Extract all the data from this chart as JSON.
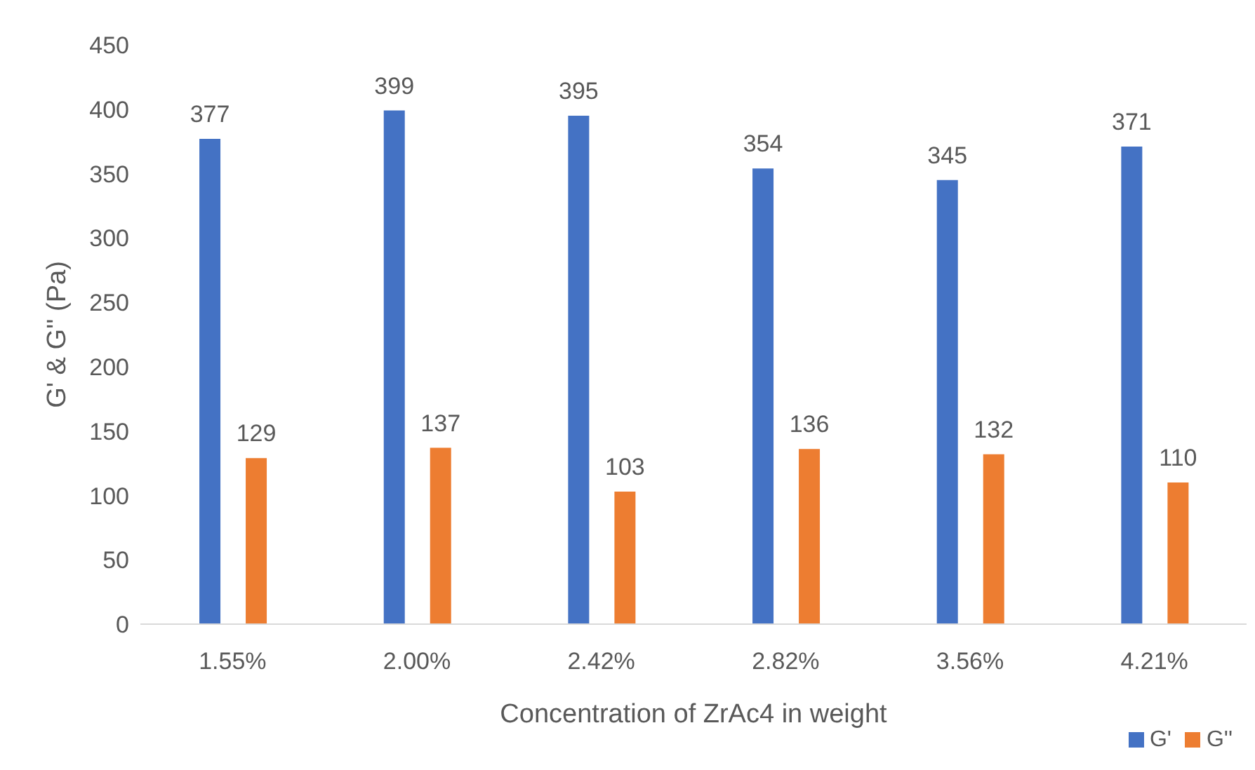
{
  "chart_data": {
    "type": "bar",
    "xlabel": "Concentration of ZrAc4 in weight",
    "ylabel": "G' & G'' (Pa)",
    "categories": [
      "1.55%",
      "2.00%",
      "2.42%",
      "2.82%",
      "3.56%",
      "4.21%"
    ],
    "series": [
      {
        "name": "G'",
        "color": "#4472c4",
        "values": [
          377,
          399,
          395,
          354,
          345,
          371
        ]
      },
      {
        "name": "G''",
        "color": "#ed7d31",
        "values": [
          129,
          137,
          103,
          136,
          132,
          110
        ]
      }
    ],
    "ylim": [
      0,
      450
    ],
    "yticks": [
      0,
      50,
      100,
      150,
      200,
      250,
      300,
      350,
      400,
      450
    ],
    "grid": false,
    "legend": "bottom right",
    "data_labels": true
  }
}
